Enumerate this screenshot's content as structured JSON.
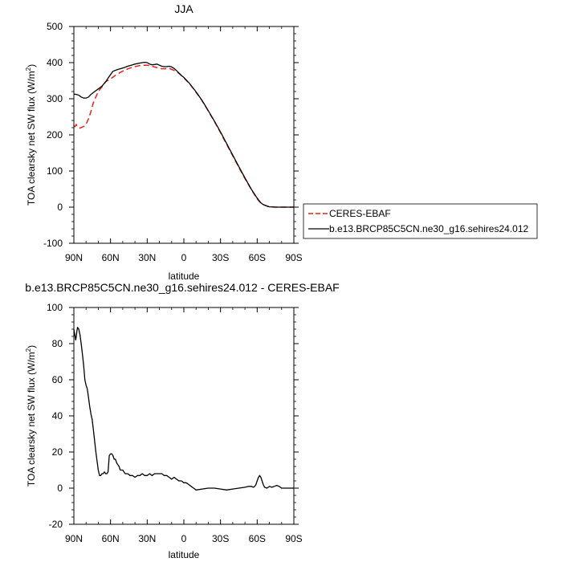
{
  "colors": {
    "model": "#000000",
    "obs": "#e8221b",
    "axis": "#000000"
  },
  "chart_data": [
    {
      "type": "line",
      "title": "JJA",
      "xlabel": "latitude",
      "ylabel": "TOA clearsky net SW flux (W/m",
      "ylabel_sup": "2",
      "ylabel_close": ")",
      "xlim": [
        90,
        -90
      ],
      "ylim": [
        -100,
        500
      ],
      "xticks": [
        90,
        60,
        30,
        0,
        -30,
        -60,
        -90
      ],
      "xtick_labels": [
        "90N",
        "60N",
        "30N",
        "0",
        "30S",
        "60S",
        "90S"
      ],
      "yticks": [
        -100,
        0,
        100,
        200,
        300,
        400,
        500
      ],
      "ytick_labels": [
        "-100",
        "0",
        "100",
        "200",
        "300",
        "400",
        "500"
      ],
      "legend_position": "right",
      "series": [
        {
          "name": "CERES-EBAF",
          "style": "dashed",
          "color": "#e8221b",
          "x": [
            90,
            89,
            88,
            87,
            86,
            85,
            84,
            83,
            82,
            80,
            78,
            76,
            74,
            72,
            70,
            67,
            64,
            60,
            56,
            52,
            48,
            44,
            40,
            36,
            33,
            30,
            27,
            24,
            21,
            18,
            15,
            12,
            9,
            6,
            3,
            0,
            -5,
            -10,
            -15,
            -20,
            -25,
            -30,
            -35,
            -40,
            -45,
            -50,
            -55,
            -60,
            -63,
            -65,
            -68,
            -70,
            -75,
            -80,
            -85,
            -90
          ],
          "y": [
            225,
            223,
            229,
            222,
            220,
            219,
            220,
            222,
            223,
            230,
            245,
            265,
            290,
            305,
            320,
            333,
            347,
            355,
            365,
            373,
            380,
            385,
            389,
            392,
            393,
            393,
            391,
            388,
            385,
            383,
            383,
            384,
            380,
            375,
            368,
            358,
            340,
            318,
            294,
            266,
            237,
            206,
            174,
            142,
            110,
            79,
            50,
            23,
            11,
            7,
            3,
            1,
            0,
            0,
            0,
            0
          ]
        },
        {
          "name": "b.e13.BRCP85C5CN.ne30_g16.sehires24.012",
          "style": "solid",
          "color": "#000000",
          "x": [
            90,
            88,
            86,
            84,
            82,
            80,
            78,
            76,
            73,
            70,
            67,
            64,
            61,
            58,
            55,
            52,
            49,
            46,
            43,
            40,
            37,
            34,
            32,
            30,
            28,
            26,
            24,
            22,
            20,
            18,
            16,
            14,
            12,
            10,
            8,
            6,
            4,
            2,
            0,
            -5,
            -10,
            -15,
            -20,
            -25,
            -30,
            -35,
            -40,
            -45,
            -50,
            -55,
            -60,
            -63,
            -65,
            -68,
            -70,
            -75,
            -80,
            -85,
            -90
          ],
          "y": [
            313,
            312,
            310,
            305,
            302,
            302,
            305,
            312,
            320,
            327,
            335,
            347,
            362,
            376,
            380,
            383,
            386,
            390,
            393,
            396,
            398,
            400,
            401,
            400,
            396,
            394,
            395,
            396,
            393,
            390,
            389,
            389,
            390,
            388,
            384,
            378,
            371,
            364,
            359,
            341,
            319,
            295,
            267,
            238,
            208,
            176,
            144,
            112,
            81,
            51,
            25,
            12,
            7,
            3,
            1,
            0,
            0,
            0,
            0
          ]
        }
      ]
    },
    {
      "type": "line",
      "title": "b.e13.BRCP85C5CN.ne30_g16.sehires24.012 - CERES-EBAF",
      "xlabel": "latitude",
      "ylabel": "TOA clearsky net SW flux (W/m",
      "ylabel_sup": "2",
      "ylabel_close": ")",
      "xlim": [
        90,
        -90
      ],
      "ylim": [
        -20,
        100
      ],
      "xticks": [
        90,
        60,
        30,
        0,
        -30,
        -60,
        -90
      ],
      "xtick_labels": [
        "90N",
        "60N",
        "30N",
        "0",
        "30S",
        "60S",
        "90S"
      ],
      "yticks": [
        -20,
        0,
        20,
        40,
        60,
        80,
        100
      ],
      "ytick_labels": [
        "-20",
        "0",
        "20",
        "40",
        "60",
        "80",
        "100"
      ],
      "series": [
        {
          "color": "#000000",
          "x": [
            90,
            89,
            88.5,
            88,
            87.5,
            87,
            86,
            85,
            84,
            83,
            82,
            81,
            80,
            79,
            78,
            77,
            76,
            75,
            74,
            73,
            72,
            71,
            70,
            69,
            68,
            67,
            66,
            65,
            64,
            63,
            62,
            61,
            60,
            59,
            58,
            57,
            56,
            55,
            54,
            53,
            52,
            51,
            50,
            49,
            48,
            46,
            44,
            42,
            40,
            38,
            36,
            34,
            32,
            30,
            28,
            26,
            24,
            22,
            20,
            18,
            16,
            14,
            12,
            10,
            8,
            6,
            4,
            2,
            0,
            -2,
            -4,
            -6,
            -8,
            -10,
            -15,
            -20,
            -25,
            -30,
            -35,
            -40,
            -45,
            -50,
            -53,
            -55,
            -57,
            -58,
            -59,
            -60,
            -61,
            -62,
            -63,
            -64,
            -65,
            -66,
            -68,
            -70,
            -72,
            -74,
            -76,
            -78,
            -80,
            -82,
            -85,
            -88,
            -90
          ],
          "y": [
            88,
            84,
            82,
            84,
            87,
            89,
            88,
            85,
            80,
            74,
            68,
            60,
            57,
            55,
            50,
            45,
            41,
            38,
            32,
            26,
            20,
            15,
            10,
            7,
            7,
            8,
            8,
            9,
            8,
            8,
            9,
            18,
            19,
            19,
            18,
            16,
            16,
            14,
            13,
            12,
            10,
            10,
            10,
            9,
            8,
            8,
            7,
            7,
            6,
            7,
            7,
            8,
            7,
            7,
            8,
            7,
            8,
            8,
            8,
            8,
            7,
            7,
            6,
            5,
            6,
            5,
            4,
            4,
            3,
            3,
            2,
            1,
            0,
            -1,
            -0.5,
            0,
            0,
            -0.5,
            -1,
            -0.5,
            0,
            0.5,
            1,
            1,
            0.5,
            1,
            2,
            4,
            6,
            7,
            6,
            4,
            2,
            0.5,
            0,
            1,
            0.5,
            1,
            1.5,
            1,
            0,
            0,
            0,
            0,
            0
          ]
        }
      ]
    }
  ]
}
